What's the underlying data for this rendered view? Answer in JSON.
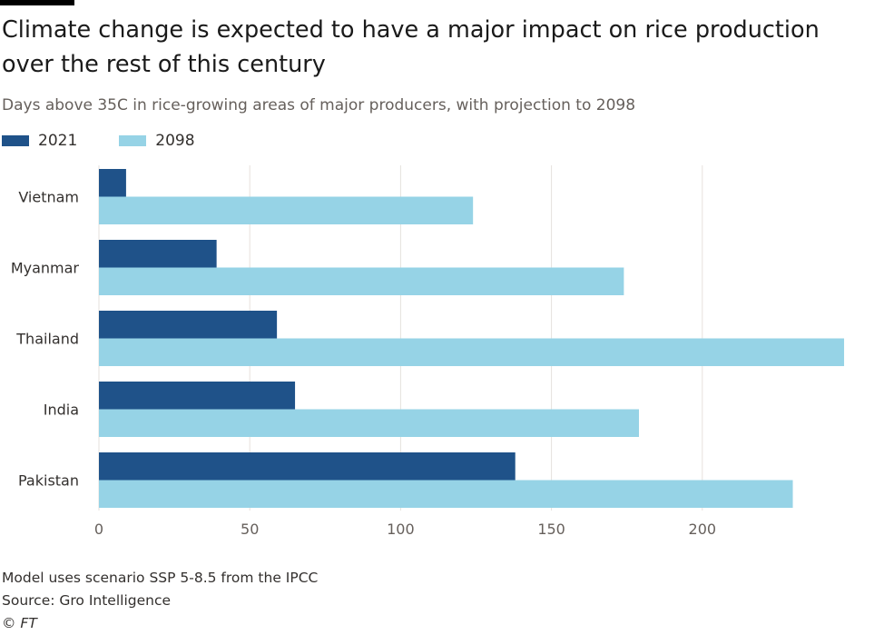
{
  "title": "Climate change is expected to have a major impact on rice production over the rest of this century",
  "subtitle": "Days above 35C in rice-growing areas of major producers, with projection to 2098",
  "footer": {
    "note": "Model uses scenario SSP 5-8.5 from the IPCC",
    "source": "Source: Gro Intelligence",
    "copyright": "© FT"
  },
  "colors": {
    "series_2021": "#1f5289",
    "series_2098": "#96d3e6",
    "gridline": "#e6e2dd",
    "axis_text": "#66605c"
  },
  "chart_data": {
    "type": "bar",
    "orientation": "horizontal",
    "categories": [
      "Vietnam",
      "Myanmar",
      "Thailand",
      "India",
      "Pakistan"
    ],
    "series": [
      {
        "name": "2021",
        "values": [
          9,
          39,
          59,
          65,
          138
        ]
      },
      {
        "name": "2098",
        "values": [
          124,
          174,
          247,
          179,
          230
        ]
      }
    ],
    "xlim": [
      0,
      250
    ],
    "xticks": [
      0,
      50,
      100,
      150,
      200
    ],
    "grid": true,
    "legend": "top-left"
  }
}
